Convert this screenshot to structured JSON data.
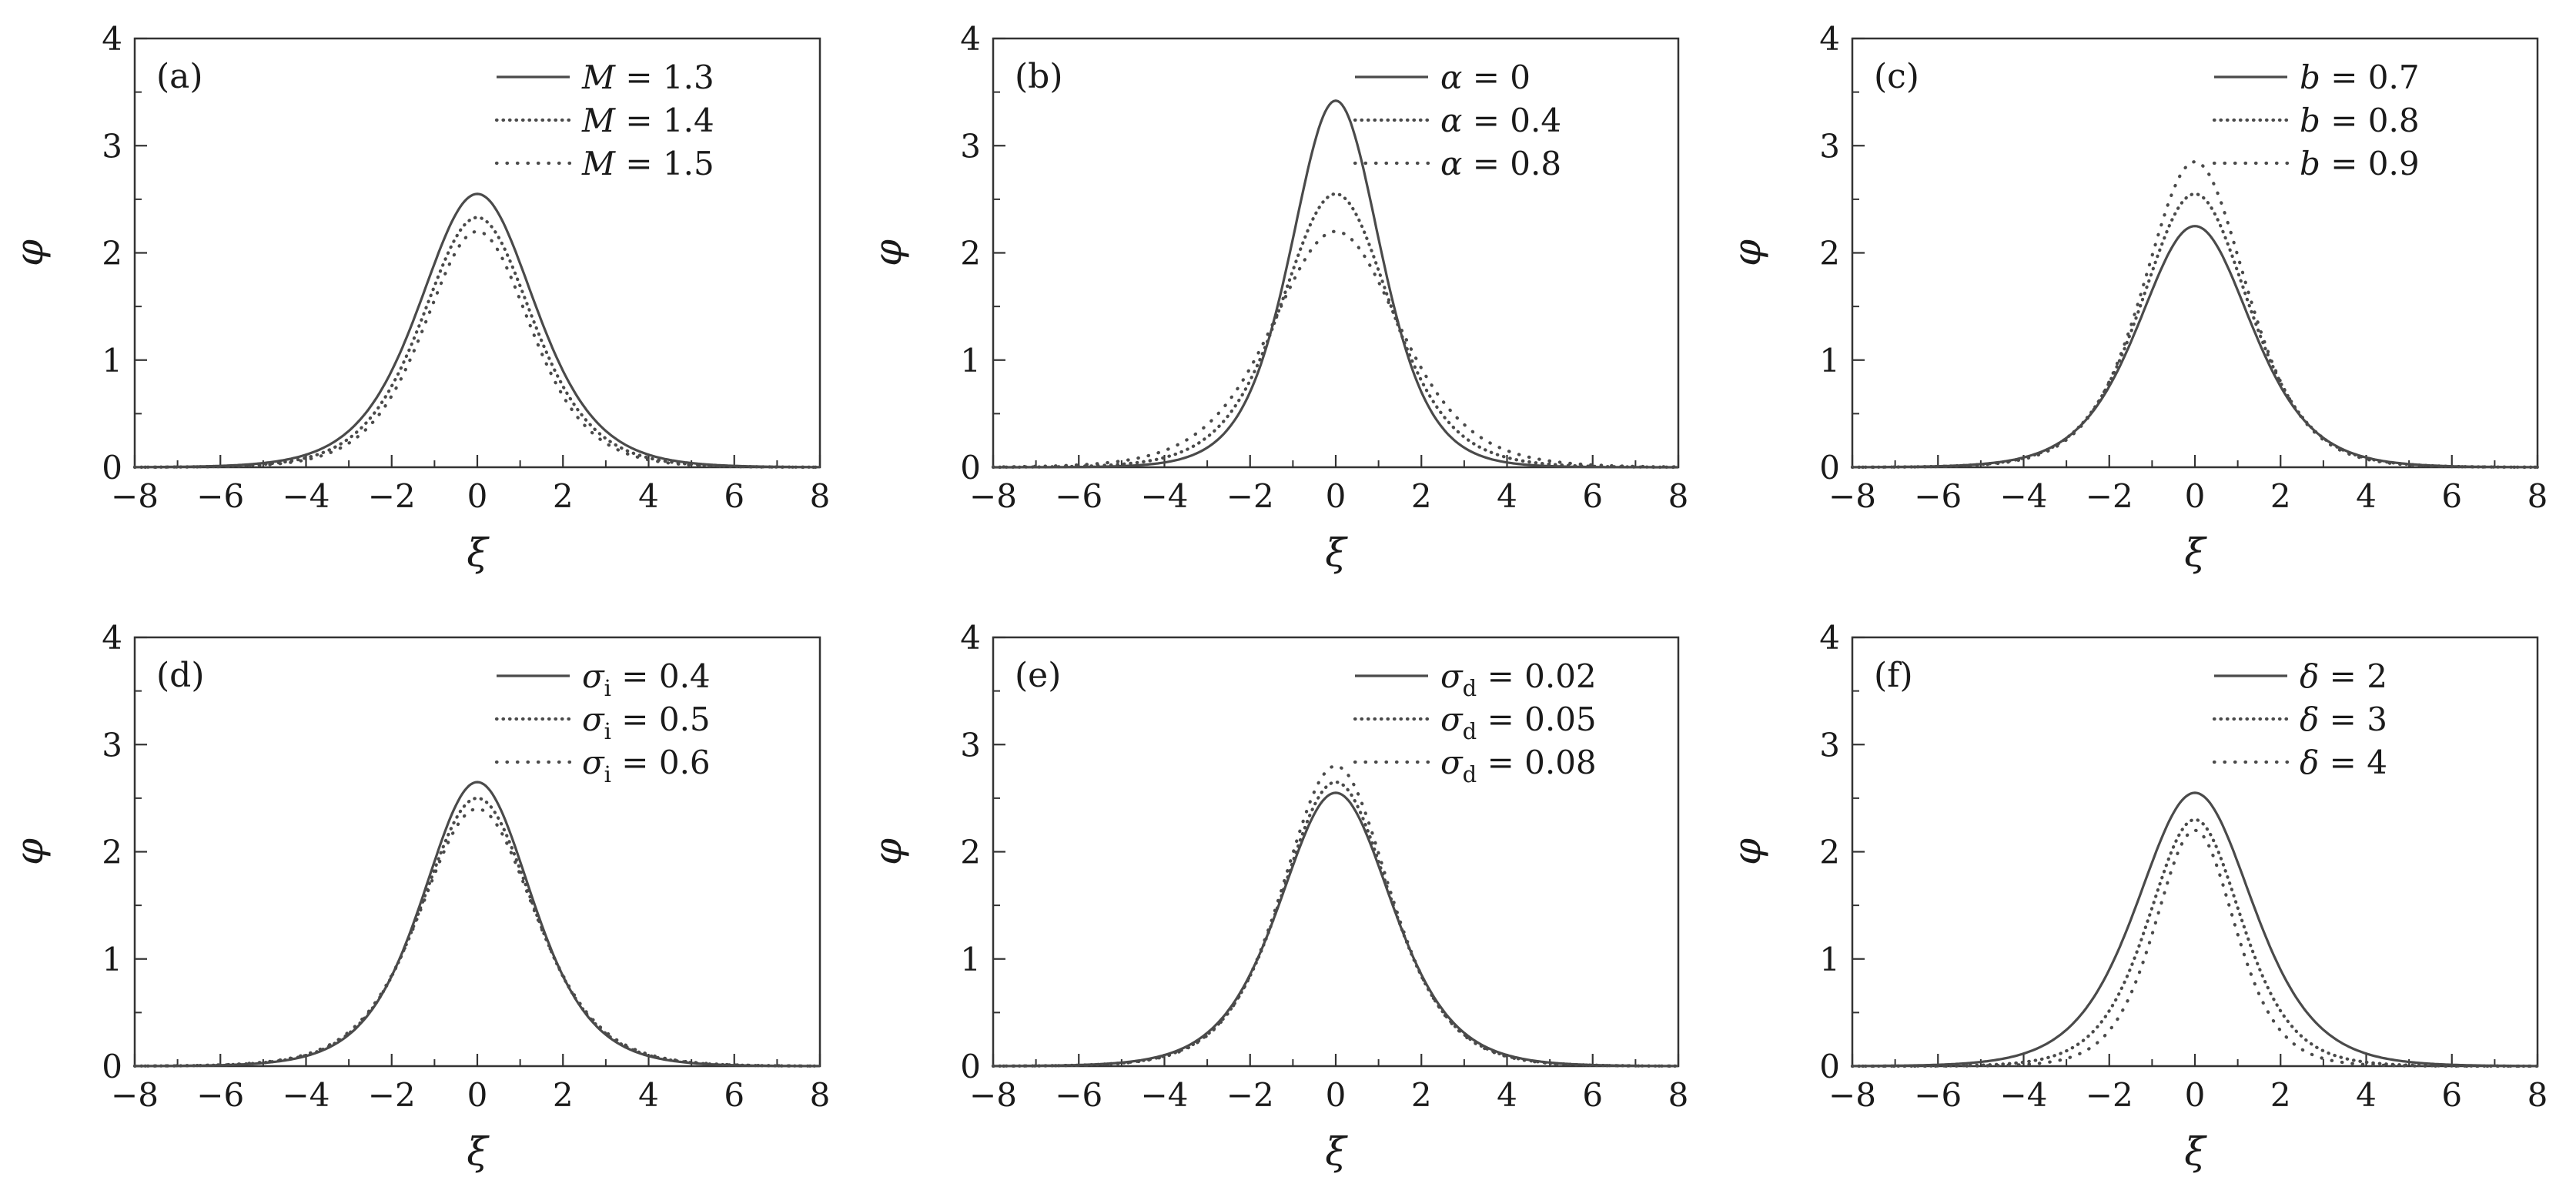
{
  "figure": {
    "background": "#ffffff",
    "curve_color": "#4a4a4a",
    "frame_color": "#333333",
    "text_color": "#1a1a1a"
  },
  "axes": {
    "xlabel": "ξ",
    "ylabel": "φ",
    "xlim": [
      -8,
      8
    ],
    "ylim": [
      0,
      4
    ],
    "x_ticks": {
      "values": [
        -8,
        -6,
        -4,
        -2,
        0,
        2,
        4,
        6,
        8
      ],
      "labels": [
        "−8",
        "−6",
        "−4",
        "−2",
        "0",
        "2",
        "4",
        "6",
        "8"
      ],
      "minor_step": 1
    },
    "y_ticks": {
      "values": [
        0,
        1,
        2,
        3,
        4
      ],
      "labels": [
        "0",
        "1",
        "2",
        "3",
        "4"
      ],
      "minor_step": 0.5
    },
    "grid": false,
    "legend_position": "top-right"
  },
  "chart_data": [
    {
      "type": "line",
      "panel_label": "(a)",
      "xlabel": "ξ",
      "ylabel": "φ",
      "xlim": [
        -8,
        8
      ],
      "ylim": [
        0,
        4
      ],
      "legend_position": "top-right",
      "series": [
        {
          "label": "M = 1.3",
          "legend": {
            "symbol": "M",
            "subscript": "",
            "value": "1.3"
          },
          "line_style": "solid",
          "profile": "sech2",
          "peak": 2.55,
          "width": 1.8,
          "peak_x": 0
        },
        {
          "label": "M = 1.4",
          "legend": {
            "symbol": "M",
            "subscript": "",
            "value": "1.4"
          },
          "line_style": "dotted",
          "profile": "sech2",
          "peak": 2.33,
          "width": 1.72,
          "peak_x": 0
        },
        {
          "label": "M = 1.5",
          "legend": {
            "symbol": "M",
            "subscript": "",
            "value": "1.5"
          },
          "line_style": "dotted-sparse",
          "profile": "sech2",
          "peak": 2.2,
          "width": 1.66,
          "peak_x": 0
        }
      ]
    },
    {
      "type": "line",
      "panel_label": "(b)",
      "xlabel": "ξ",
      "ylabel": "φ",
      "xlim": [
        -8,
        8
      ],
      "ylim": [
        0,
        4
      ],
      "legend_position": "top-right",
      "series": [
        {
          "label": "α = 0",
          "legend": {
            "symbol": "α",
            "subscript": "",
            "value": "0"
          },
          "line_style": "solid",
          "profile": "sech2",
          "peak": 3.42,
          "width": 1.4,
          "peak_x": 0
        },
        {
          "label": "α = 0.4",
          "legend": {
            "symbol": "α",
            "subscript": "",
            "value": "0.4"
          },
          "line_style": "dotted",
          "profile": "sech2",
          "peak": 2.55,
          "width": 1.7,
          "peak_x": 0
        },
        {
          "label": "α = 0.8",
          "legend": {
            "symbol": "α",
            "subscript": "",
            "value": "0.8"
          },
          "line_style": "dotted-sparse",
          "profile": "sech2",
          "peak": 2.2,
          "width": 2.0,
          "peak_x": 0
        }
      ]
    },
    {
      "type": "line",
      "panel_label": "(c)",
      "xlabel": "ξ",
      "ylabel": "φ",
      "xlim": [
        -8,
        8
      ],
      "ylim": [
        0,
        4
      ],
      "legend_position": "top-right",
      "series": [
        {
          "label": "b = 0.7",
          "legend": {
            "symbol": "b",
            "subscript": "",
            "value": "0.7"
          },
          "line_style": "solid",
          "profile": "sech2",
          "peak": 2.25,
          "width": 1.75,
          "peak_x": 0
        },
        {
          "label": "b = 0.8",
          "legend": {
            "symbol": "b",
            "subscript": "",
            "value": "0.8"
          },
          "line_style": "dotted",
          "profile": "sech2",
          "peak": 2.55,
          "width": 1.68,
          "peak_x": 0
        },
        {
          "label": "b = 0.9",
          "legend": {
            "symbol": "b",
            "subscript": "",
            "value": "0.9"
          },
          "line_style": "dotted-sparse",
          "profile": "sech2",
          "peak": 2.85,
          "width": 1.6,
          "peak_x": 0
        }
      ]
    },
    {
      "type": "line",
      "panel_label": "(d)",
      "xlabel": "ξ",
      "ylabel": "φ",
      "xlim": [
        -8,
        8
      ],
      "ylim": [
        0,
        4
      ],
      "legend_position": "top-right",
      "series": [
        {
          "label": "σi = 0.4",
          "legend": {
            "symbol": "σ",
            "subscript": "i",
            "value": "0.4"
          },
          "line_style": "solid",
          "profile": "sech2",
          "peak": 2.65,
          "width": 1.7,
          "peak_x": 0
        },
        {
          "label": "σi = 0.5",
          "legend": {
            "symbol": "σ",
            "subscript": "i",
            "value": "0.5"
          },
          "line_style": "dotted",
          "profile": "sech2",
          "peak": 2.5,
          "width": 1.75,
          "peak_x": 0
        },
        {
          "label": "σi = 0.6",
          "legend": {
            "symbol": "σ",
            "subscript": "i",
            "value": "0.6"
          },
          "line_style": "dotted-sparse",
          "profile": "sech2",
          "peak": 2.4,
          "width": 1.8,
          "peak_x": 0
        }
      ]
    },
    {
      "type": "line",
      "panel_label": "(e)",
      "xlabel": "ξ",
      "ylabel": "φ",
      "xlim": [
        -8,
        8
      ],
      "ylim": [
        0,
        4
      ],
      "legend_position": "top-right",
      "series": [
        {
          "label": "σd = 0.02",
          "legend": {
            "symbol": "σ",
            "subscript": "d",
            "value": "0.02"
          },
          "line_style": "solid",
          "profile": "sech2",
          "peak": 2.55,
          "width": 1.75,
          "peak_x": 0
        },
        {
          "label": "σd = 0.05",
          "legend": {
            "symbol": "σ",
            "subscript": "d",
            "value": "0.05"
          },
          "line_style": "dotted",
          "profile": "sech2",
          "peak": 2.65,
          "width": 1.7,
          "peak_x": 0
        },
        {
          "label": "σd = 0.08",
          "legend": {
            "symbol": "σ",
            "subscript": "d",
            "value": "0.08"
          },
          "line_style": "dotted-sparse",
          "profile": "sech2",
          "peak": 2.8,
          "width": 1.66,
          "peak_x": 0
        }
      ]
    },
    {
      "type": "line",
      "panel_label": "(f)",
      "xlabel": "ξ",
      "ylabel": "φ",
      "xlim": [
        -8,
        8
      ],
      "ylim": [
        0,
        4
      ],
      "legend_position": "top-right",
      "series": [
        {
          "label": "δ = 2",
          "legend": {
            "symbol": "δ",
            "subscript": "",
            "value": "2"
          },
          "line_style": "solid",
          "profile": "sech2",
          "peak": 2.55,
          "width": 1.8,
          "peak_x": 0
        },
        {
          "label": "δ = 3",
          "legend": {
            "symbol": "δ",
            "subscript": "",
            "value": "3"
          },
          "line_style": "dotted",
          "profile": "sech2",
          "peak": 2.3,
          "width": 1.45,
          "peak_x": 0
        },
        {
          "label": "δ = 4",
          "legend": {
            "symbol": "δ",
            "subscript": "",
            "value": "4"
          },
          "line_style": "dotted-sparse",
          "profile": "sech2",
          "peak": 2.2,
          "width": 1.25,
          "peak_x": 0
        }
      ]
    }
  ]
}
